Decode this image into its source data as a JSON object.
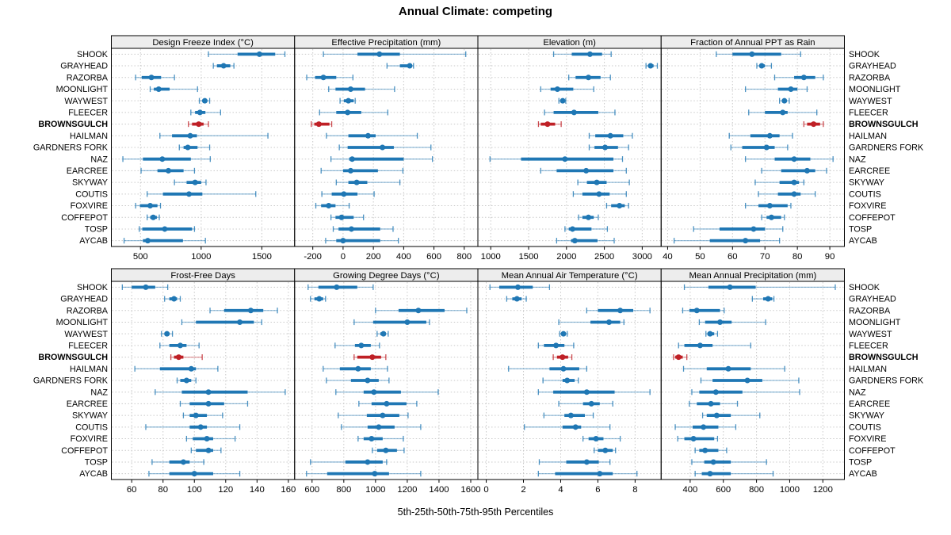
{
  "title": "Annual Climate: competing",
  "footer": "5th-25th-50th-75th-95th Percentiles",
  "colors": {
    "series_blue": "#1f77b4",
    "highlight_red": "#bf2026",
    "strip_bg": "#ededed",
    "panel_border": "#000000",
    "grid": "#c9c9c9",
    "text": "#000000"
  },
  "sites": [
    "SHOOK",
    "GRAYHEAD",
    "RAZORBA",
    "MOONLIGHT",
    "WAYWEST",
    "FLEECER",
    "BROWNSGULCH",
    "HAILMAN",
    "GARDNERS FORK",
    "NAZ",
    "EARCREE",
    "SKYWAY",
    "COUTIS",
    "FOXVIRE",
    "COFFEPOT",
    "TOSP",
    "AYCAB"
  ],
  "highlight_site": "BROWNSGULCH",
  "chart_data": {
    "type": "dotplot",
    "note": "horizontal percentile interval plot; values per site are [p5,p25,p50,p75,p95]",
    "percentile_labels": [
      "5th",
      "25th",
      "50th",
      "75th",
      "95th"
    ],
    "grid": "dashed",
    "panels": [
      {
        "title": "Design Freeze Index (°C)",
        "row": 0,
        "col": 0,
        "xlim": [
          260,
          1770
        ],
        "ticks": [
          500,
          1000,
          1500
        ],
        "series": [
          [
            1060,
            1300,
            1480,
            1610,
            1690
          ],
          [
            1100,
            1130,
            1185,
            1240,
            1270
          ],
          [
            460,
            510,
            590,
            670,
            780
          ],
          [
            580,
            610,
            650,
            740,
            970
          ],
          [
            985,
            1010,
            1030,
            1050,
            1070
          ],
          [
            915,
            950,
            990,
            1035,
            1160
          ],
          [
            895,
            925,
            980,
            1020,
            1060
          ],
          [
            660,
            760,
            910,
            965,
            1550
          ],
          [
            820,
            855,
            890,
            970,
            1070
          ],
          [
            355,
            520,
            680,
            915,
            1075
          ],
          [
            505,
            640,
            730,
            855,
            945
          ],
          [
            780,
            880,
            950,
            1000,
            1040
          ],
          [
            555,
            685,
            900,
            1010,
            1450
          ],
          [
            460,
            495,
            580,
            640,
            665
          ],
          [
            555,
            580,
            605,
            635,
            655
          ],
          [
            490,
            515,
            700,
            925,
            945
          ],
          [
            365,
            520,
            560,
            850,
            1035
          ]
        ]
      },
      {
        "title": "Effective Precipitation (mm)",
        "row": 0,
        "col": 1,
        "xlim": [
          -320,
          890
        ],
        "ticks": [
          -200,
          0,
          200,
          400,
          600,
          800
        ],
        "series": [
          [
            -130,
            95,
            240,
            375,
            810
          ],
          [
            290,
            375,
            440,
            455,
            465
          ],
          [
            -240,
            -185,
            -130,
            -45,
            65
          ],
          [
            -95,
            -50,
            50,
            145,
            340
          ],
          [
            -20,
            5,
            35,
            70,
            80
          ],
          [
            -155,
            -45,
            30,
            120,
            295
          ],
          [
            -210,
            -190,
            -160,
            -90,
            -75
          ],
          [
            -110,
            35,
            165,
            215,
            490
          ],
          [
            -25,
            30,
            260,
            335,
            580
          ],
          [
            -80,
            40,
            60,
            400,
            590
          ],
          [
            -145,
            0,
            50,
            230,
            395
          ],
          [
            -45,
            35,
            90,
            160,
            375
          ],
          [
            -140,
            -75,
            5,
            95,
            205
          ],
          [
            -180,
            -145,
            -95,
            -50,
            40
          ],
          [
            -80,
            -50,
            -10,
            70,
            135
          ],
          [
            -65,
            -30,
            55,
            245,
            330
          ],
          [
            -115,
            -45,
            0,
            245,
            365
          ]
        ]
      },
      {
        "title": "Elevation (m)",
        "row": 0,
        "col": 2,
        "xlim": [
          830,
          3250
        ],
        "ticks": [
          1000,
          1500,
          2000,
          2500,
          3000
        ],
        "series": [
          [
            1830,
            2070,
            2310,
            2470,
            2590
          ],
          [
            3050,
            3080,
            3110,
            3150,
            3200
          ],
          [
            2030,
            2120,
            2290,
            2450,
            2580
          ],
          [
            1660,
            1790,
            1880,
            2090,
            2360
          ],
          [
            1900,
            1930,
            1950,
            1970,
            1990
          ],
          [
            1710,
            1830,
            2100,
            2420,
            2640
          ],
          [
            1630,
            1660,
            1750,
            1850,
            1930
          ],
          [
            2300,
            2380,
            2580,
            2750,
            2870
          ],
          [
            2300,
            2370,
            2510,
            2680,
            2820
          ],
          [
            990,
            1400,
            1980,
            2620,
            2740
          ],
          [
            1660,
            1870,
            2260,
            2620,
            2790
          ],
          [
            2150,
            2270,
            2400,
            2530,
            2830
          ],
          [
            2090,
            2210,
            2430,
            2570,
            2790
          ],
          [
            2530,
            2590,
            2700,
            2770,
            2820
          ],
          [
            2160,
            2210,
            2290,
            2360,
            2420
          ],
          [
            1980,
            2030,
            2080,
            2330,
            2540
          ],
          [
            1870,
            2060,
            2110,
            2410,
            2630
          ]
        ]
      },
      {
        "title": "Fraction of Annual PPT as Rain",
        "row": 0,
        "col": 3,
        "xlim": [
          38,
          94.5
        ],
        "ticks": [
          40,
          50,
          60,
          70,
          80,
          90
        ],
        "series": [
          [
            55,
            60,
            66,
            75,
            81
          ],
          [
            67.5,
            68.5,
            69,
            70,
            72
          ],
          [
            73,
            79,
            82,
            85.5,
            88
          ],
          [
            64,
            74,
            78,
            80,
            83
          ],
          [
            74.5,
            75.5,
            76,
            76.5,
            77.5
          ],
          [
            65,
            70,
            75.5,
            77,
            86
          ],
          [
            82,
            83,
            85,
            87,
            88
          ],
          [
            59,
            65.5,
            71.5,
            74.5,
            78.5
          ],
          [
            59.5,
            63,
            70.5,
            73,
            77
          ],
          [
            64,
            73,
            79,
            84,
            91
          ],
          [
            69,
            75,
            83,
            85.5,
            89
          ],
          [
            67,
            74.5,
            79,
            80.5,
            82
          ],
          [
            68,
            74,
            79,
            81,
            85.5
          ],
          [
            64,
            68,
            71.5,
            77,
            78
          ],
          [
            69,
            70.5,
            72,
            75,
            76
          ],
          [
            48,
            56,
            66.5,
            70,
            75.5
          ],
          [
            42,
            53,
            64,
            68.5,
            74.5
          ]
        ]
      },
      {
        "title": "Frost-Free Days",
        "row": 1,
        "col": 0,
        "xlim": [
          47,
          164
        ],
        "ticks": [
          60,
          80,
          100,
          120,
          140,
          160
        ],
        "series": [
          [
            54,
            60,
            69,
            75,
            83
          ],
          [
            81,
            84,
            87,
            89,
            91
          ],
          [
            110,
            119,
            136,
            144,
            153
          ],
          [
            92,
            101,
            129,
            138,
            143
          ],
          [
            79,
            81,
            82.5,
            84,
            86
          ],
          [
            78,
            84,
            91,
            95,
            103
          ],
          [
            85,
            87,
            90,
            93,
            105
          ],
          [
            62,
            78,
            98,
            101,
            115
          ],
          [
            89,
            91,
            95,
            98,
            101
          ],
          [
            75,
            92,
            109,
            134,
            158
          ],
          [
            91,
            97,
            109,
            119,
            134
          ],
          [
            93,
            97,
            101,
            108,
            118
          ],
          [
            69,
            97,
            104,
            108,
            129
          ],
          [
            95,
            99,
            108,
            112,
            126
          ],
          [
            98,
            101,
            109,
            112,
            117
          ],
          [
            73,
            84,
            93,
            97,
            106
          ],
          [
            71,
            84,
            100,
            112,
            129
          ]
        ]
      },
      {
        "title": "Growing Degree Days (°C)",
        "row": 1,
        "col": 1,
        "xlim": [
          490,
          1645
        ],
        "ticks": [
          600,
          800,
          1000,
          1200,
          1400,
          1600
        ],
        "series": [
          [
            575,
            640,
            755,
            885,
            985
          ],
          [
            590,
            615,
            645,
            670,
            685
          ],
          [
            1000,
            1145,
            1270,
            1435,
            1575
          ],
          [
            865,
            985,
            1200,
            1320,
            1340
          ],
          [
            1010,
            1030,
            1050,
            1065,
            1080
          ],
          [
            745,
            870,
            910,
            970,
            1025
          ],
          [
            865,
            885,
            980,
            1035,
            1065
          ],
          [
            670,
            775,
            890,
            970,
            1075
          ],
          [
            690,
            845,
            950,
            1020,
            1085
          ],
          [
            750,
            925,
            990,
            1160,
            1395
          ],
          [
            895,
            975,
            1070,
            1195,
            1260
          ],
          [
            765,
            945,
            1045,
            1150,
            1205
          ],
          [
            785,
            950,
            1020,
            1120,
            1285
          ],
          [
            890,
            925,
            975,
            1045,
            1175
          ],
          [
            980,
            1010,
            1065,
            1135,
            1180
          ],
          [
            590,
            810,
            950,
            1045,
            1070
          ],
          [
            565,
            695,
            995,
            1085,
            1285
          ]
        ]
      },
      {
        "title": "Mean Annual Air Temperature (°C)",
        "row": 1,
        "col": 2,
        "xlim": [
          -0.45,
          9.4
        ],
        "ticks": [
          0,
          2,
          4,
          6,
          8
        ],
        "series": [
          [
            0.2,
            0.7,
            1.7,
            2.5,
            3.4
          ],
          [
            1.1,
            1.4,
            1.65,
            1.9,
            2.15
          ],
          [
            5.4,
            6.0,
            7.2,
            7.9,
            8.8
          ],
          [
            3.9,
            5.6,
            6.6,
            7.2,
            7.4
          ],
          [
            3.95,
            4.05,
            4.15,
            4.25,
            4.35
          ],
          [
            2.8,
            3.1,
            3.75,
            4.2,
            4.7
          ],
          [
            3.6,
            3.8,
            4.1,
            4.4,
            4.6
          ],
          [
            1.2,
            3.4,
            4.15,
            5.0,
            5.4
          ],
          [
            3.05,
            4.1,
            4.35,
            4.75,
            4.95
          ],
          [
            2.8,
            3.6,
            5.4,
            6.9,
            8.8
          ],
          [
            3.9,
            5.2,
            5.65,
            6.1,
            6.8
          ],
          [
            3.1,
            4.2,
            4.55,
            5.3,
            5.75
          ],
          [
            2.05,
            4.1,
            4.8,
            5.1,
            6.65
          ],
          [
            5.2,
            5.5,
            5.9,
            6.3,
            7.2
          ],
          [
            5.8,
            6.0,
            6.4,
            6.8,
            6.95
          ],
          [
            2.85,
            4.3,
            5.4,
            6.05,
            6.65
          ],
          [
            2.8,
            3.7,
            6.1,
            6.8,
            8.1
          ]
        ]
      },
      {
        "title": "Mean Annual Precipitation (mm)",
        "row": 1,
        "col": 3,
        "xlim": [
          225,
          1330
        ],
        "ticks": [
          400,
          600,
          800,
          1000,
          1200
        ],
        "series": [
          [
            365,
            510,
            640,
            795,
            1275
          ],
          [
            775,
            840,
            870,
            895,
            905
          ],
          [
            355,
            395,
            440,
            580,
            605
          ],
          [
            455,
            490,
            580,
            650,
            855
          ],
          [
            495,
            505,
            520,
            545,
            565
          ],
          [
            330,
            365,
            460,
            535,
            765
          ],
          [
            300,
            310,
            330,
            355,
            380
          ],
          [
            360,
            500,
            630,
            765,
            970
          ],
          [
            465,
            535,
            745,
            835,
            1055
          ],
          [
            410,
            455,
            555,
            715,
            1060
          ],
          [
            395,
            440,
            525,
            580,
            685
          ],
          [
            475,
            500,
            560,
            645,
            820
          ],
          [
            310,
            415,
            480,
            570,
            675
          ],
          [
            325,
            365,
            420,
            545,
            565
          ],
          [
            430,
            455,
            490,
            570,
            620
          ],
          [
            410,
            485,
            540,
            645,
            860
          ],
          [
            430,
            470,
            520,
            645,
            900
          ]
        ]
      }
    ]
  }
}
